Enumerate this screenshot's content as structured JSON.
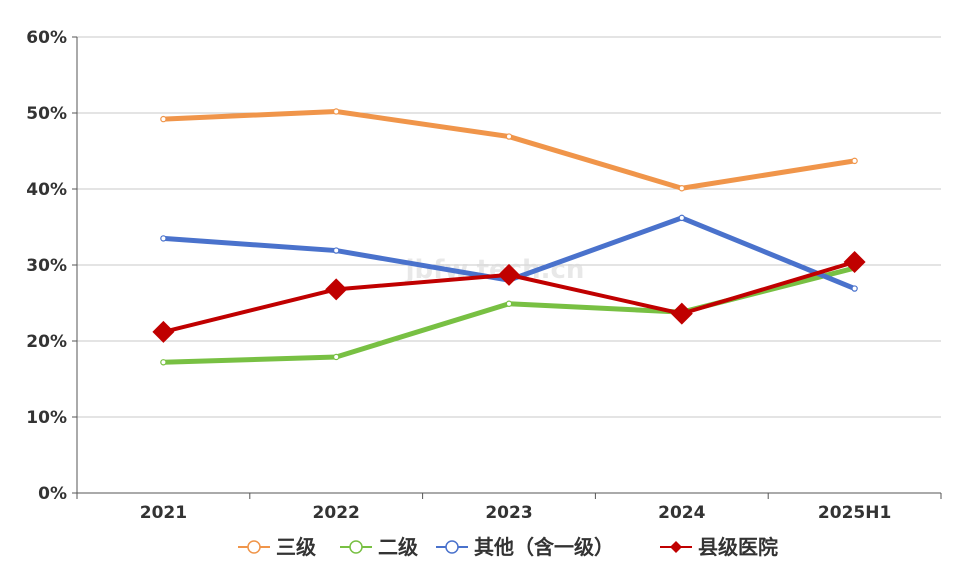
{
  "chart_data": {
    "type": "line",
    "categories": [
      "2021",
      "2022",
      "2023",
      "2024",
      "2025H1"
    ],
    "ylim": [
      0,
      60
    ],
    "yticks": [
      0,
      10,
      20,
      30,
      40,
      50,
      60
    ],
    "ytick_labels": [
      "0%",
      "10%",
      "20%",
      "30%",
      "40%",
      "50%",
      "60%"
    ],
    "grid": true,
    "legend_position": "bottom",
    "watermark": "jbfw.tech.cn",
    "series": [
      {
        "name": "三级",
        "values": [
          49.2,
          50.2,
          46.9,
          40.1,
          43.7
        ],
        "color": "#f0954a",
        "marker": "circle"
      },
      {
        "name": "二级",
        "values": [
          17.2,
          17.9,
          24.9,
          23.8,
          29.6
        ],
        "color": "#78c043",
        "marker": "circle"
      },
      {
        "name": "其他（含一级）",
        "values": [
          33.5,
          31.9,
          28.0,
          36.2,
          26.9
        ],
        "color": "#4a72cc",
        "marker": "circle"
      },
      {
        "name": "县级医院",
        "values": [
          21.2,
          26.8,
          28.7,
          23.6,
          30.4
        ],
        "color": "#c00000",
        "marker": "diamond"
      }
    ]
  }
}
